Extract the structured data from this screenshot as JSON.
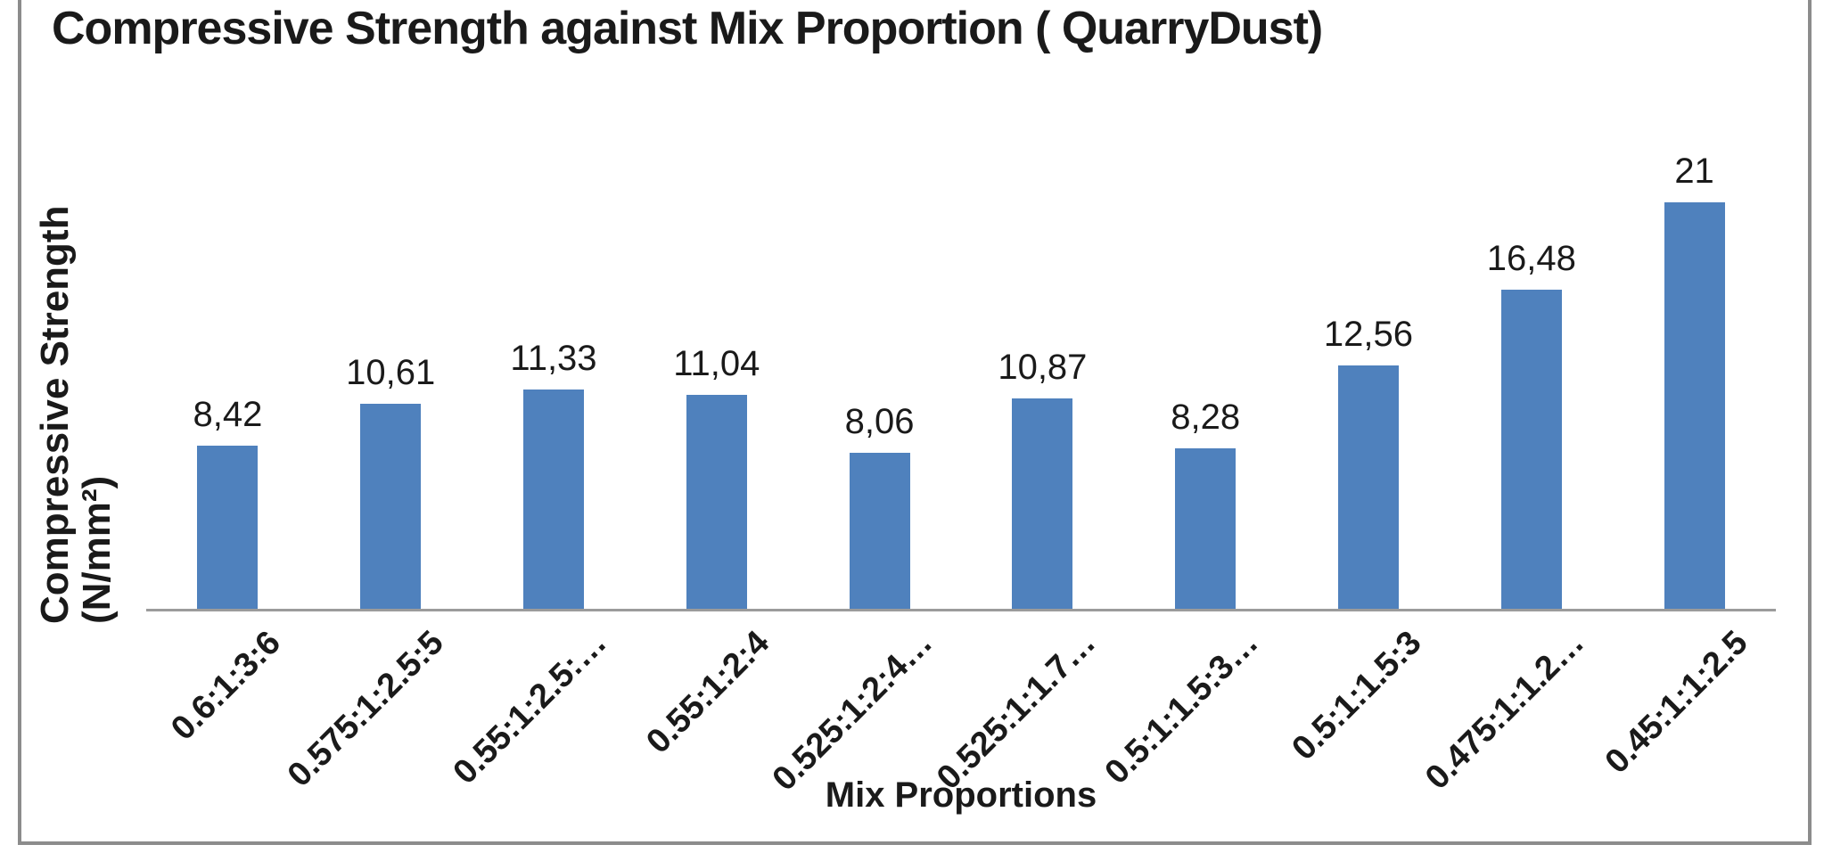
{
  "frame": {
    "border_color": "#8C8C8C",
    "background": "#FFFFFF"
  },
  "chart_data": {
    "type": "bar",
    "title": "Compressive Strength against Mix Proportion ( QuarryDust)",
    "xlabel": "Mix Proportions",
    "ylabel": "Compressive Strength (N/mm²)",
    "ylabel_lines": [
      "Compressive Strength",
      "(N/mm²)"
    ],
    "categories": [
      "0.6:1:3:6",
      "0.575:1:2.5:5",
      "0.55:1:2.5:…",
      "0.55:1:2:4",
      "0.525:1:2:4…",
      "0.525:1:1.7…",
      "0.5:1:1.5:3…",
      "0.5:1:1.5:3",
      "0.475:1:1.2…",
      "0.45:1:1:2.5"
    ],
    "values": [
      8.42,
      10.61,
      11.33,
      11.04,
      8.06,
      10.87,
      8.28,
      12.56,
      16.48,
      21
    ],
    "value_labels": [
      "8,42",
      "10,61",
      "11,33",
      "11,04",
      "8,06",
      "10,87",
      "8,28",
      "12,56",
      "16,48",
      "21"
    ],
    "ylim": [
      0,
      21
    ],
    "grid": false,
    "legend_position": "none",
    "bar_color": "#4F81BD",
    "axis_line_color": "#9B9B9B",
    "text_color": "#1A1A1A"
  }
}
